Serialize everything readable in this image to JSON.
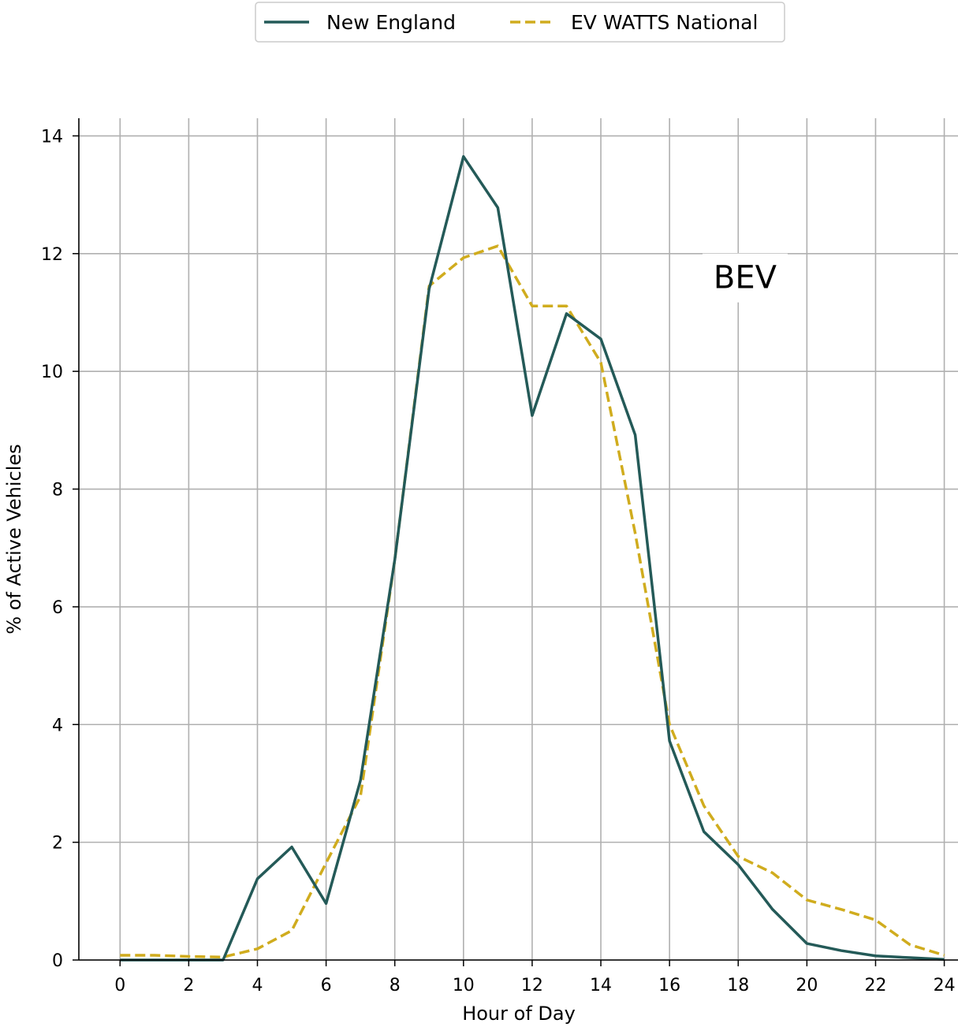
{
  "chart_data": {
    "type": "line",
    "xlabel": "Hour of Day",
    "ylabel": "% of Active Vehicles",
    "xlim": [
      -1.2,
      24.4
    ],
    "ylim": [
      0,
      14.3
    ],
    "xticks": [
      0,
      2,
      4,
      6,
      8,
      10,
      12,
      14,
      16,
      18,
      20,
      22,
      24
    ],
    "yticks": [
      0,
      2,
      4,
      6,
      8,
      10,
      12,
      14
    ],
    "grid": true,
    "legend_position": "top-center",
    "annotation": "BEV",
    "annotation_x": 18.2,
    "annotation_y": 11.6,
    "series": [
      {
        "name": "New England",
        "color": "#245a58",
        "style": "solid",
        "x": [
          0,
          1,
          2,
          3,
          4,
          5,
          6,
          7,
          8,
          9,
          10,
          11,
          12,
          13,
          14,
          15,
          16,
          17,
          18,
          19,
          20,
          21,
          22,
          23,
          24
        ],
        "y": [
          0.0,
          0.0,
          0.0,
          0.0,
          1.38,
          1.92,
          0.96,
          3.05,
          6.8,
          11.4,
          13.65,
          12.78,
          9.25,
          10.98,
          10.55,
          8.92,
          3.72,
          2.18,
          1.62,
          0.86,
          0.28,
          0.16,
          0.07,
          0.04,
          0.01
        ]
      },
      {
        "name": "EV WATTS National",
        "color": "#d0ac1e",
        "style": "dashed",
        "x": [
          0,
          1,
          2,
          3,
          4,
          5,
          6,
          7,
          8,
          9,
          10,
          11,
          12,
          13,
          14,
          15,
          16,
          17,
          18,
          19,
          20,
          21,
          22,
          23,
          24
        ],
        "y": [
          0.08,
          0.08,
          0.06,
          0.05,
          0.19,
          0.5,
          1.65,
          2.78,
          6.8,
          11.45,
          11.93,
          12.13,
          11.11,
          11.11,
          10.15,
          7.25,
          4.0,
          2.62,
          1.76,
          1.48,
          1.02,
          0.86,
          0.68,
          0.26,
          0.08
        ]
      }
    ]
  }
}
